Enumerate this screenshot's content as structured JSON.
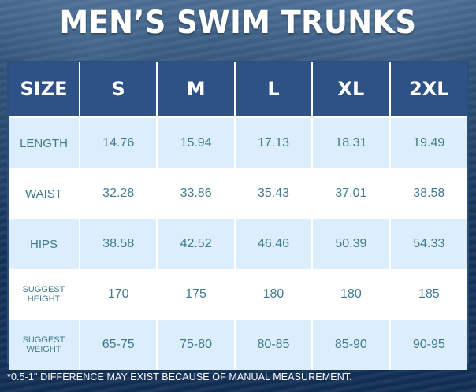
{
  "title": "MEN’S SWIM TRUNKS",
  "table": {
    "header": [
      "SIZE",
      "S",
      "M",
      "L",
      "XL",
      "2XL"
    ],
    "rows": [
      {
        "label": "LENGTH",
        "values": [
          "14.76",
          "15.94",
          "17.13",
          "18.31",
          "19.49"
        ]
      },
      {
        "label": "WAIST",
        "values": [
          "32.28",
          "33.86",
          "35.43",
          "37.01",
          "38.58"
        ]
      },
      {
        "label": "HIPS",
        "values": [
          "38.58",
          "42.52",
          "46.46",
          "50.39",
          "54.33"
        ]
      },
      {
        "label": "SUGGEST HEIGHT",
        "values": [
          "170",
          "175",
          "180",
          "180",
          "185"
        ]
      },
      {
        "label": "SUGGEST WEIGHT",
        "values": [
          "65-75",
          "75-80",
          "80-85",
          "85-90",
          "90-95"
        ]
      }
    ]
  },
  "footer": "*0.5-1\"  DIFFERENCE MAY EXIST BECAUSE OF MANUAL MEASUREMENT."
}
